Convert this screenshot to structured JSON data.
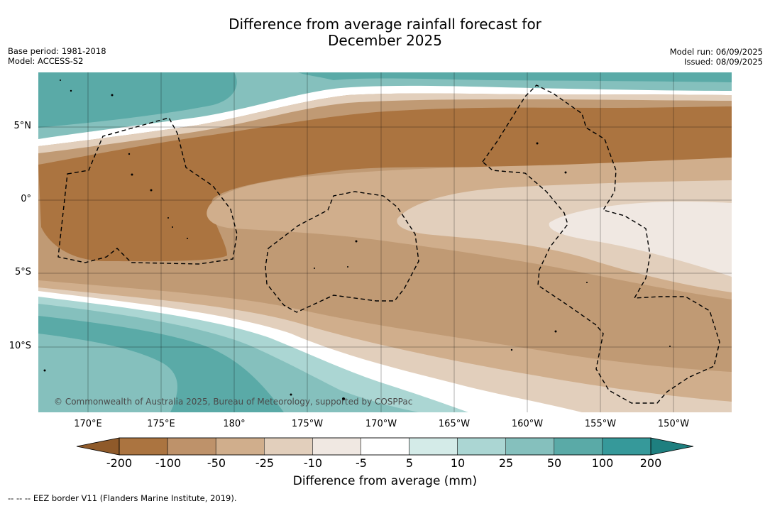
{
  "title": {
    "line1": "Difference from average rainfall forecast for",
    "line2": "December 2025"
  },
  "meta_left": {
    "base_period": "Base period: 1981-2018",
    "model": "Model: ACCESS-S2"
  },
  "meta_right": {
    "model_run": "Model run: 06/09/2025",
    "issued": "Issued: 08/09/2025"
  },
  "map": {
    "lat_labels": [
      "5°N",
      "0°",
      "5°S",
      "10°S"
    ],
    "lon_labels": [
      "170°E",
      "175°E",
      "180°",
      "175°W",
      "170°W",
      "165°W",
      "160°W",
      "155°W",
      "150°W"
    ],
    "credit": "© Commonwealth of Australia 2025, Bureau of Meteorology, supported by COSPPac"
  },
  "colorbar": {
    "ticks": [
      "-200",
      "-100",
      "-50",
      "-25",
      "-10",
      "-5",
      "5",
      "10",
      "25",
      "50",
      "100",
      "200"
    ],
    "colors": [
      "#8f5a2a",
      "#ab7440",
      "#be926a",
      "#d0ae8c",
      "#e2cfbc",
      "#f0e8e2",
      "#ffffff",
      "#d4ebe8",
      "#abd6d3",
      "#85c0bd",
      "#5aaaa7",
      "#36999a",
      "#1e7f7f"
    ],
    "label": "Difference from average (mm)"
  },
  "footnote": "--  --  -- EEZ border V11 (Flanders Marine Institute, 2019)."
}
